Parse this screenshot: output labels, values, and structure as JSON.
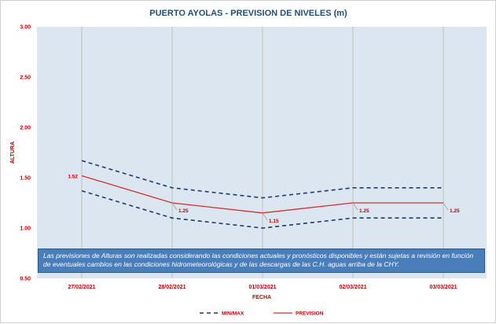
{
  "chart_data": {
    "type": "line",
    "title": "PUERTO AYOLAS - PREVISION DE NIVELES (m)",
    "xlabel": "FECHA",
    "ylabel": "ALTURA",
    "categories": [
      "27/02/2021",
      "28/02/2021",
      "01/03/2021",
      "02/03/2021",
      "03/03/2021"
    ],
    "ylim": [
      0.5,
      3.0
    ],
    "yticks": [
      "3.00",
      "2.50",
      "2.00",
      "1.50",
      "1.00",
      "0.50"
    ],
    "grid": "vertical",
    "series": [
      {
        "name": "MIN/MAX",
        "role": "max",
        "values": [
          1.67,
          1.4,
          1.3,
          1.4,
          1.4
        ],
        "color": "#1f3a6e",
        "dash": true
      },
      {
        "name": "",
        "role": "min",
        "values": [
          1.37,
          1.1,
          1.0,
          1.1,
          1.1
        ],
        "color": "#1f3a6e",
        "dash": true
      },
      {
        "name": "PREVISION",
        "role": "forecast",
        "values": [
          1.52,
          1.25,
          1.15,
          1.25,
          1.25
        ],
        "color": "#cc3333",
        "dash": false
      }
    ],
    "data_labels": [
      "1.52",
      "1.25",
      "1.15",
      "1.25",
      "1.25"
    ],
    "legend_position": "bottom",
    "plot_background": "#dce6f1",
    "axis_label_color": "#c00000",
    "title_color": "#1f4e79"
  },
  "note": "Las previsiones de Alturas son realizadas considerando las condiciones actuales y pronósticos disponibles y están sujetas a revisión en función de eventuales cambios en las condiciones hidrometeorológicas y de las descargas de las C.H. aguas arriba de la CHY."
}
